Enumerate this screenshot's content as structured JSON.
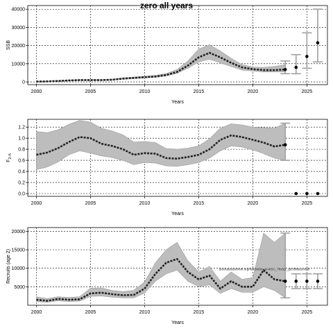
{
  "title": "zero all years",
  "chart_data": [
    {
      "type": "line",
      "ylabel": "SSB",
      "xlabel": "Years",
      "xlim": [
        1999.2,
        2026.9
      ],
      "ylim": [
        -1500,
        42000
      ],
      "xticks": [
        2000,
        2005,
        2010,
        2015,
        2020,
        2025
      ],
      "yticks": [
        0,
        10000,
        20000,
        30000,
        40000
      ],
      "grid": true,
      "x": [
        2000,
        2001,
        2002,
        2003,
        2004,
        2005,
        2006,
        2007,
        2008,
        2009,
        2010,
        2011,
        2012,
        2013,
        2014,
        2015,
        2016,
        2017,
        2018,
        2019,
        2020,
        2021,
        2022,
        2023
      ],
      "median": [
        200,
        300,
        500,
        800,
        1000,
        1000,
        1000,
        1200,
        1800,
        2200,
        2600,
        3000,
        3800,
        5500,
        9000,
        13500,
        16000,
        13500,
        10500,
        8000,
        7000,
        6500,
        6500,
        6800
      ],
      "lower": [
        100,
        200,
        400,
        600,
        800,
        800,
        800,
        1000,
        1500,
        1800,
        2200,
        2500,
        3300,
        4700,
        7500,
        11000,
        12500,
        10500,
        8500,
        6500,
        6000,
        5500,
        5500,
        5500
      ],
      "upper": [
        300,
        400,
        700,
        1000,
        1200,
        1200,
        1200,
        1500,
        2200,
        2700,
        3100,
        3600,
        4600,
        6800,
        11500,
        18000,
        20500,
        17000,
        13000,
        9500,
        8200,
        8000,
        8500,
        9500
      ],
      "projection": {
        "x": [
          2023,
          2024,
          2025,
          2026
        ],
        "median": [
          6800,
          8000,
          14000,
          21500
        ],
        "lower": [
          4500,
          4500,
          7500,
          11000
        ],
        "upper": [
          11500,
          15000,
          27000,
          40000
        ]
      }
    },
    {
      "type": "line",
      "ylabel": "F",
      "ylabel_sub": "2–5",
      "xlabel": "Years",
      "xlim": [
        1999.2,
        2026.9
      ],
      "ylim": [
        -0.05,
        1.34
      ],
      "xticks": [
        2000,
        2005,
        2010,
        2015,
        2020,
        2025
      ],
      "yticks": [
        "0.0",
        "0.2",
        "0.4",
        "0.6",
        "0.8",
        "1.0",
        "1.2"
      ],
      "grid": true,
      "x": [
        2000,
        2001,
        2002,
        2003,
        2004,
        2005,
        2006,
        2007,
        2008,
        2009,
        2010,
        2011,
        2012,
        2013,
        2014,
        2015,
        2016,
        2017,
        2018,
        2019,
        2020,
        2021,
        2022,
        2023
      ],
      "median": [
        0.7,
        0.74,
        0.82,
        0.93,
        1.02,
        1.0,
        0.9,
        0.86,
        0.8,
        0.7,
        0.73,
        0.72,
        0.64,
        0.63,
        0.66,
        0.7,
        0.8,
        0.97,
        1.05,
        1.02,
        0.97,
        0.92,
        0.85,
        0.88
      ],
      "lower": [
        0.43,
        0.48,
        0.57,
        0.7,
        0.77,
        0.73,
        0.68,
        0.65,
        0.6,
        0.52,
        0.56,
        0.55,
        0.5,
        0.49,
        0.52,
        0.56,
        0.64,
        0.77,
        0.86,
        0.84,
        0.79,
        0.72,
        0.64,
        0.6
      ],
      "upper": [
        1.12,
        1.1,
        1.15,
        1.25,
        1.32,
        1.29,
        1.18,
        1.13,
        1.06,
        0.93,
        0.94,
        0.92,
        0.81,
        0.8,
        0.82,
        0.86,
        0.99,
        1.18,
        1.26,
        1.24,
        1.2,
        1.19,
        1.18,
        1.27
      ],
      "projection": {
        "x": [
          2023,
          2024,
          2025,
          2026
        ],
        "median": [
          0.88,
          0.0,
          0.0,
          0.0
        ],
        "lower": [
          0.6,
          0.0,
          0.0,
          0.0
        ],
        "upper": [
          1.27,
          0.0,
          0.0,
          0.0
        ]
      }
    },
    {
      "type": "line",
      "ylabel": "Recruits (age 2)",
      "xlabel": "Years",
      "xlim": [
        1999.2,
        2026.9
      ],
      "ylim": [
        0,
        21000
      ],
      "xticks": [
        2000,
        2005,
        2010,
        2015,
        2020,
        2025
      ],
      "yticks": [
        5000,
        10000,
        15000,
        20000
      ],
      "grid": true,
      "annotation": "stockassessment.org/WKBNSK_N-WSC_Tfix5t1_gtc3f9ba2640bf",
      "x": [
        2000,
        2001,
        2002,
        2003,
        2004,
        2005,
        2006,
        2007,
        2008,
        2009,
        2010,
        2011,
        2012,
        2013,
        2014,
        2015,
        2016,
        2017,
        2018,
        2019,
        2020,
        2021,
        2022,
        2023
      ],
      "median": [
        1500,
        1200,
        1700,
        1500,
        1600,
        3200,
        3400,
        3000,
        2700,
        2800,
        4500,
        8500,
        11500,
        12500,
        9000,
        7000,
        8000,
        4500,
        6500,
        5000,
        5000,
        9500,
        7000,
        6500
      ],
      "lower": [
        1000,
        800,
        1200,
        1000,
        1100,
        2400,
        2500,
        2200,
        2000,
        2000,
        3300,
        6500,
        8500,
        9500,
        6500,
        5000,
        5500,
        3200,
        4500,
        3500,
        3500,
        5000,
        4000,
        2000
      ],
      "upper": [
        2300,
        1800,
        2300,
        2100,
        2300,
        4600,
        4700,
        4000,
        3700,
        4000,
        6300,
        11500,
        15000,
        17000,
        12000,
        9000,
        10500,
        6500,
        9000,
        7000,
        7500,
        19500,
        17000,
        19500
      ],
      "projection": {
        "x": [
          2023,
          2024,
          2025,
          2026
        ],
        "median": [
          6500,
          6500,
          6500,
          6500
        ],
        "lower": [
          2000,
          4500,
          4500,
          4500
        ],
        "upper": [
          19500,
          8500,
          8500,
          8500
        ]
      }
    }
  ]
}
